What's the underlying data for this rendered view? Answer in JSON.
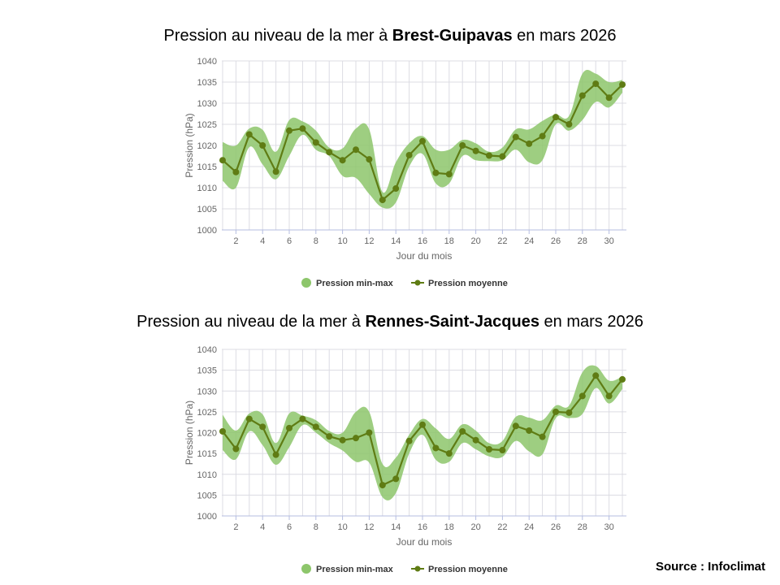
{
  "chart_data": [
    {
      "type": "area",
      "title": {
        "prefix": "Pression au niveau de la mer à ",
        "station": "Brest-Guipavas",
        "suffix": " en mars 2026"
      },
      "xlabel": "Jour du mois",
      "ylabel": "Pression (hPa)",
      "xlim": [
        1,
        31
      ],
      "ylim": [
        1000,
        1040
      ],
      "x_ticks": [
        2,
        4,
        6,
        8,
        10,
        12,
        14,
        16,
        18,
        20,
        22,
        24,
        26,
        28,
        30
      ],
      "y_ticks": [
        1000,
        1005,
        1010,
        1015,
        1020,
        1025,
        1030,
        1035,
        1040
      ],
      "grid": true,
      "legend": {
        "position": "bottom-center",
        "range_label": "Pression min-max",
        "mean_label": "Pression moyenne"
      },
      "x": [
        1,
        2,
        3,
        4,
        5,
        6,
        7,
        8,
        9,
        10,
        11,
        12,
        13,
        14,
        15,
        16,
        17,
        18,
        19,
        20,
        21,
        22,
        23,
        24,
        25,
        26,
        27,
        28,
        29,
        30,
        31
      ],
      "series": [
        {
          "name": "Pression min-max",
          "type": "arearange",
          "low": [
            1011.6,
            1010,
            1019.6,
            1015.5,
            1012,
            1017.5,
            1022.5,
            1019,
            1017.5,
            1012.8,
            1012.3,
            1008.5,
            1005.3,
            1006.5,
            1015,
            1018,
            1011,
            1011,
            1017.5,
            1016.5,
            1016.3,
            1016.5,
            1019,
            1016,
            1016.5,
            1025,
            1023.5,
            1026,
            1030.3,
            1029,
            1032.5
          ],
          "high": [
            1020.8,
            1020,
            1024,
            1023.7,
            1018.5,
            1026,
            1025.7,
            1023.5,
            1019.5,
            1019.3,
            1024,
            1023.8,
            1009,
            1016,
            1020.5,
            1022.2,
            1019,
            1019,
            1021.3,
            1020.5,
            1018.5,
            1019.5,
            1023.8,
            1023.8,
            1025.8,
            1027.3,
            1027,
            1037,
            1037,
            1035,
            1035.5
          ]
        },
        {
          "name": "Pression moyenne",
          "type": "line",
          "values": [
            1016.5,
            1013.7,
            1022.6,
            1020,
            1013.8,
            1023.5,
            1024,
            1020.7,
            1018.4,
            1016.5,
            1019,
            1016.7,
            1007.1,
            1009.8,
            1017.7,
            1021,
            1013.5,
            1013.2,
            1020,
            1018.7,
            1017.6,
            1017.4,
            1022,
            1020.4,
            1022.2,
            1026.7,
            1025,
            1031.8,
            1034.6,
            1031.3,
            1034.4
          ]
        }
      ]
    },
    {
      "type": "area",
      "title": {
        "prefix": "Pression au niveau de la mer à ",
        "station": "Rennes-Saint-Jacques",
        "suffix": " en mars 2026"
      },
      "xlabel": "Jour du mois",
      "ylabel": "Pression (hPa)",
      "xlim": [
        1,
        31
      ],
      "ylim": [
        1000,
        1040
      ],
      "x_ticks": [
        2,
        4,
        6,
        8,
        10,
        12,
        14,
        16,
        18,
        20,
        22,
        24,
        26,
        28,
        30
      ],
      "y_ticks": [
        1000,
        1005,
        1010,
        1015,
        1020,
        1025,
        1030,
        1035,
        1040
      ],
      "grid": true,
      "legend": {
        "position": "bottom-center",
        "range_label": "Pression min-max",
        "mean_label": "Pression moyenne"
      },
      "x": [
        1,
        2,
        3,
        4,
        5,
        6,
        7,
        8,
        9,
        10,
        11,
        12,
        13,
        14,
        15,
        16,
        17,
        18,
        19,
        20,
        21,
        22,
        23,
        24,
        25,
        26,
        27,
        28,
        29,
        30,
        31
      ],
      "series": [
        {
          "name": "Pression min-max",
          "type": "arearange",
          "low": [
            1015.8,
            1013.6,
            1020.3,
            1017,
            1012.3,
            1016.5,
            1021.8,
            1020,
            1017.5,
            1015.7,
            1013,
            1012.8,
            1004.5,
            1005.5,
            1015,
            1019.5,
            1013.5,
            1013,
            1017.5,
            1016,
            1014.3,
            1014.2,
            1018,
            1015.5,
            1014.8,
            1023.5,
            1023.5,
            1024.5,
            1030.7,
            1027,
            1030.5
          ],
          "high": [
            1024.3,
            1020.5,
            1024.6,
            1024.4,
            1017.5,
            1024.6,
            1024.1,
            1023,
            1020.4,
            1020,
            1025,
            1025,
            1012.5,
            1014,
            1019.5,
            1023.3,
            1021,
            1018.5,
            1022,
            1020.5,
            1017.5,
            1018,
            1023.8,
            1023.6,
            1023,
            1026.5,
            1026.5,
            1034.5,
            1036,
            1032.5,
            1033.5
          ]
        },
        {
          "name": "Pression moyenne",
          "type": "line",
          "values": [
            1020.3,
            1016.1,
            1023.3,
            1021.4,
            1014.7,
            1021.1,
            1023.3,
            1021.4,
            1019.1,
            1018.2,
            1018.7,
            1020,
            1007.4,
            1008.9,
            1018,
            1021.9,
            1016.3,
            1015,
            1020.3,
            1018.2,
            1016,
            1015.8,
            1021.6,
            1020.5,
            1019,
            1025,
            1024.8,
            1028.8,
            1033.7,
            1028.8,
            1032.8
          ]
        }
      ]
    }
  ],
  "colors": {
    "range": "#8dc66b",
    "mean": "#5f7c14",
    "grid": "#dcdce3",
    "axis": "#b5bde0",
    "tick": "#666666"
  },
  "source": "Source : Infoclimat"
}
